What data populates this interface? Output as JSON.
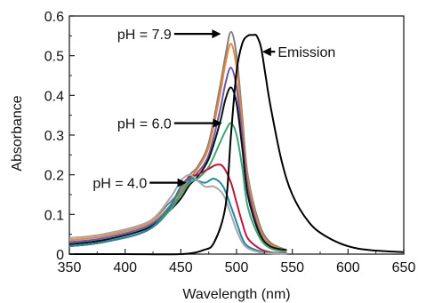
{
  "chart_data": {
    "type": "line",
    "title": "",
    "xlabel": "Wavelength (nm)",
    "ylabel": "Absorbance",
    "xlim": [
      350,
      650
    ],
    "ylim": [
      0,
      0.6
    ],
    "xticks": [
      "350",
      "400",
      "450",
      "500",
      "550",
      "600",
      "650"
    ],
    "yticks": [
      "0",
      "0.1",
      "0.2",
      "0.3",
      "0.4",
      "0.5",
      "0.6"
    ],
    "grid": false,
    "series": [
      {
        "color": "#808080",
        "x": [
          350,
          380,
          420,
          440,
          450,
          458,
          465,
          475,
          485,
          490,
          495,
          500,
          505,
          510,
          520,
          530,
          545
        ],
        "y": [
          0.04,
          0.05,
          0.08,
          0.13,
          0.16,
          0.2,
          0.22,
          0.28,
          0.42,
          0.5,
          0.56,
          0.5,
          0.35,
          0.2,
          0.08,
          0.03,
          0.01
        ]
      },
      {
        "color": "#e8863a",
        "x": [
          350,
          380,
          420,
          440,
          450,
          458,
          465,
          475,
          485,
          490,
          495,
          500,
          505,
          510,
          520,
          530,
          545
        ],
        "y": [
          0.035,
          0.045,
          0.075,
          0.12,
          0.155,
          0.19,
          0.215,
          0.27,
          0.4,
          0.48,
          0.53,
          0.47,
          0.33,
          0.19,
          0.07,
          0.025,
          0.01
        ]
      },
      {
        "color": "#6a58a8",
        "x": [
          350,
          380,
          420,
          440,
          450,
          458,
          465,
          475,
          485,
          490,
          495,
          500,
          505,
          510,
          520,
          530,
          545
        ],
        "y": [
          0.03,
          0.04,
          0.07,
          0.115,
          0.15,
          0.185,
          0.205,
          0.25,
          0.36,
          0.43,
          0.47,
          0.42,
          0.3,
          0.17,
          0.06,
          0.02,
          0.01
        ]
      },
      {
        "color": "#111111",
        "x": [
          350,
          380,
          420,
          440,
          450,
          458,
          465,
          475,
          485,
          490,
          495,
          500,
          505,
          510,
          520,
          530,
          545
        ],
        "y": [
          0.025,
          0.035,
          0.065,
          0.11,
          0.14,
          0.175,
          0.195,
          0.24,
          0.33,
          0.39,
          0.42,
          0.38,
          0.27,
          0.15,
          0.055,
          0.02,
          0.01
        ]
      },
      {
        "color": "#3aa876",
        "x": [
          350,
          380,
          420,
          440,
          450,
          458,
          465,
          475,
          485,
          490,
          495,
          500,
          505,
          510,
          520,
          530,
          545
        ],
        "y": [
          0.02,
          0.03,
          0.06,
          0.11,
          0.15,
          0.18,
          0.19,
          0.22,
          0.28,
          0.31,
          0.33,
          0.3,
          0.22,
          0.12,
          0.045,
          0.015,
          0.005
        ]
      },
      {
        "color": "#c0163a",
        "x": [
          350,
          380,
          420,
          440,
          450,
          458,
          465,
          475,
          482,
          488,
          495,
          500,
          505,
          510,
          520,
          530,
          545
        ],
        "y": [
          0.02,
          0.03,
          0.06,
          0.12,
          0.17,
          0.195,
          0.2,
          0.215,
          0.225,
          0.22,
          0.18,
          0.13,
          0.08,
          0.04,
          0.015,
          0.005,
          0.002
        ]
      },
      {
        "color": "#1e8aa8",
        "x": [
          350,
          380,
          420,
          440,
          450,
          458,
          465,
          472,
          480,
          488,
          495,
          500,
          505,
          510,
          520,
          530,
          545
        ],
        "y": [
          0.02,
          0.03,
          0.06,
          0.12,
          0.17,
          0.19,
          0.185,
          0.18,
          0.19,
          0.17,
          0.12,
          0.08,
          0.04,
          0.02,
          0.008,
          0.003,
          0.001
        ]
      },
      {
        "color": "#a8a8a8",
        "x": [
          350,
          380,
          420,
          440,
          450,
          458,
          465,
          472,
          480,
          488,
          495,
          500,
          505,
          510,
          520,
          530,
          545
        ],
        "y": [
          0.04,
          0.05,
          0.08,
          0.14,
          0.185,
          0.2,
          0.185,
          0.17,
          0.17,
          0.15,
          0.1,
          0.06,
          0.03,
          0.015,
          0.005,
          0.002,
          0.001
        ]
      },
      {
        "color": "#000000",
        "x": [
          350,
          400,
          450,
          470,
          480,
          490,
          495,
          500,
          505,
          510,
          515,
          518,
          522,
          526,
          530,
          540,
          550,
          565,
          580,
          600,
          620,
          650
        ],
        "y": [
          0,
          0,
          0,
          0.01,
          0.03,
          0.12,
          0.3,
          0.46,
          0.53,
          0.55,
          0.552,
          0.55,
          0.52,
          0.45,
          0.38,
          0.24,
          0.15,
          0.08,
          0.045,
          0.02,
          0.01,
          0.005
        ]
      }
    ],
    "annotations": [
      {
        "text": "pH = 7.9",
        "x": 393,
        "y": 0.555,
        "arrow_to": [
          486,
          0.555
        ]
      },
      {
        "text": "pH = 6.0",
        "x": 393,
        "y": 0.33,
        "arrow_to": [
          487,
          0.33
        ]
      },
      {
        "text": "pH = 4.0",
        "x": 371,
        "y": 0.18,
        "arrow_to": [
          455,
          0.18
        ]
      },
      {
        "text": "Emission",
        "x": 537,
        "y": 0.51,
        "arrow_to": [
          523,
          0.51
        ]
      }
    ]
  }
}
